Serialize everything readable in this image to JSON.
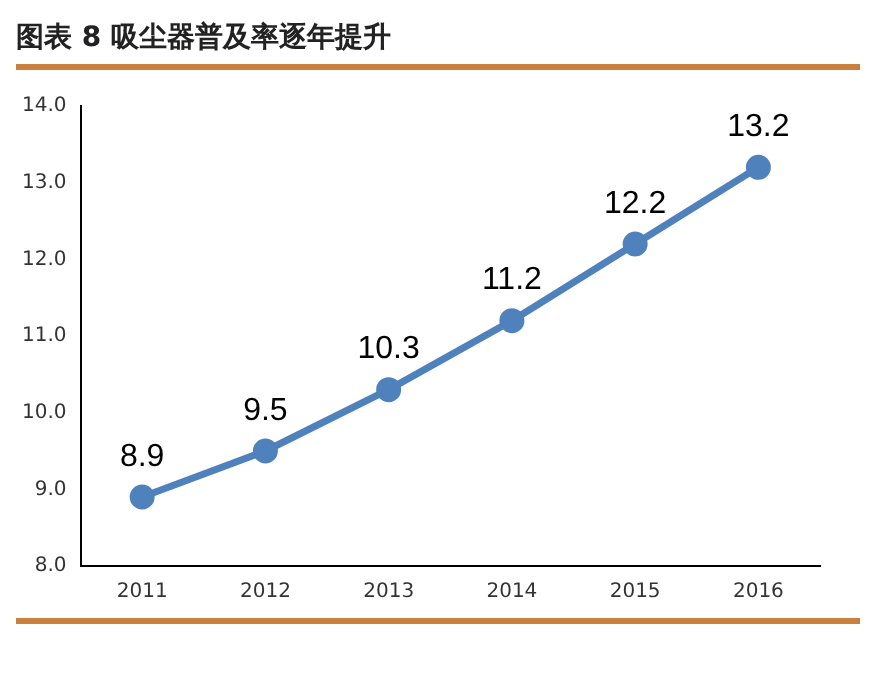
{
  "chart_data": {
    "type": "line",
    "title": "图表 8 吸尘器普及率逐年提升",
    "categories": [
      "2011",
      "2012",
      "2013",
      "2014",
      "2015",
      "2016"
    ],
    "series": [
      {
        "color": "#4f81bd",
        "values": [
          8.9,
          9.5,
          10.3,
          11.2,
          12.2,
          13.2
        ]
      }
    ],
    "ylim": [
      8,
      14
    ],
    "yticks": [
      {
        "value": 8,
        "label": "8.0"
      },
      {
        "value": 9,
        "label": "9.0"
      },
      {
        "value": 10,
        "label": "10.0"
      },
      {
        "value": 11,
        "label": "11.0"
      },
      {
        "value": 12,
        "label": "12.0"
      },
      {
        "value": 13,
        "label": "13.0"
      },
      {
        "value": 14,
        "label": "14.0"
      }
    ],
    "grid": false,
    "legend": false,
    "marker": "circle",
    "line_style": "solid",
    "data_labels": true
  }
}
